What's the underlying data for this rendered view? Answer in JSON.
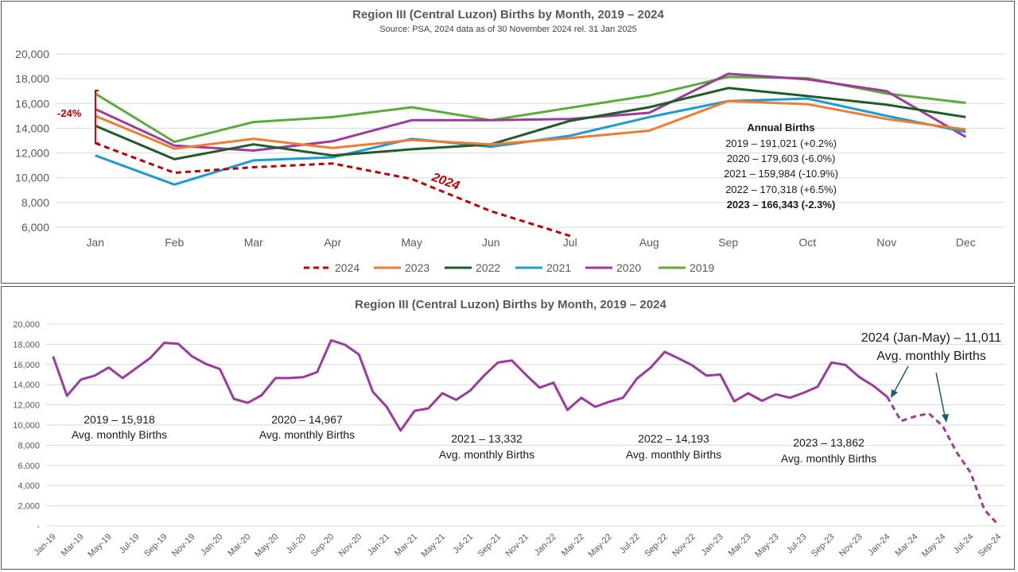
{
  "chart_data": [
    {
      "type": "line",
      "title": "Region III (Central Luzon) Births by Month, 2019 – 2024",
      "subtitle": "Source: PSA, 2024 data as of 30 November 2024 rel. 31 Jan 2025",
      "categories": [
        "Jan",
        "Feb",
        "Mar",
        "Apr",
        "May",
        "Jun",
        "Jul",
        "Aug",
        "Sep",
        "Oct",
        "Nov",
        "Dec"
      ],
      "ylim": [
        6000,
        20000
      ],
      "yticks": [
        "6,000",
        "8,000",
        "10,000",
        "12,000",
        "14,000",
        "16,000",
        "18,000",
        "20,000"
      ],
      "grid": true,
      "legend_position": "bottom",
      "series": [
        {
          "name": "2024",
          "color": "#c00000",
          "dashed": true,
          "values": [
            12800,
            10400,
            10850,
            11150,
            9900,
            7300,
            5300,
            null,
            null,
            null,
            null,
            null
          ]
        },
        {
          "name": "2023",
          "color": "#ed7d31",
          "values": [
            15000,
            12350,
            13150,
            12400,
            13050,
            12700,
            13200,
            13800,
            16200,
            15950,
            14750,
            13900
          ]
        },
        {
          "name": "2022",
          "color": "#1e5c2a",
          "values": [
            14200,
            11500,
            12700,
            11800,
            12300,
            12700,
            14600,
            15700,
            17250,
            16600,
            15900,
            14900
          ]
        },
        {
          "name": "2021",
          "color": "#1f9bd1",
          "values": [
            11800,
            9450,
            11400,
            11650,
            13150,
            12500,
            13400,
            14900,
            16200,
            16400,
            15000,
            13700
          ]
        },
        {
          "name": "2020",
          "color": "#9e3a9e",
          "values": [
            15550,
            12600,
            12200,
            12950,
            14650,
            14650,
            14750,
            15250,
            18400,
            17950,
            17000,
            13300
          ]
        },
        {
          "name": "2019",
          "color": "#5aab3a",
          "values": [
            16800,
            12900,
            14500,
            14900,
            15700,
            14650,
            15650,
            16650,
            18150,
            18050,
            16800,
            16050
          ]
        }
      ],
      "annotations": {
        "drop_label": "-24%",
        "series_label": "2024",
        "annual_title": "Annual Births",
        "annual_lines": [
          "2019 – 191,021 (+0.2%)",
          "2020 – 179,603 (-6.0%)",
          "2021 – 159,984 (-10.9%)",
          "2022 – 170,318 (+6.5%)",
          "2023 – 166,343 (-2.3%)"
        ]
      }
    },
    {
      "type": "line",
      "title": "Region III (Central Luzon) Births by Month, 2019 – 2024",
      "ylim": [
        0,
        20000
      ],
      "yticks": [
        "-",
        "2,000",
        "4,000",
        "6,000",
        "8,000",
        "10,000",
        "12,000",
        "14,000",
        "16,000",
        "18,000",
        "20,000"
      ],
      "grid": true,
      "line_color": "#9e3a9e",
      "x_labels": [
        "Jan-19",
        "Mar-19",
        "May-19",
        "Jul-19",
        "Sep-19",
        "Nov-19",
        "Jan-20",
        "Mar-20",
        "May-20",
        "Jul-20",
        "Sep-20",
        "Nov-20",
        "Jan-21",
        "Mar-21",
        "May-21",
        "Jul-21",
        "Sep-21",
        "Nov-21",
        "Jan-22",
        "Mar-22",
        "May-22",
        "Jul-22",
        "Sep-22",
        "Nov-22",
        "Jan-23",
        "Mar-23",
        "May-23",
        "Jul-23",
        "Sep-23",
        "Nov-23",
        "Jan-24",
        "Mar-24",
        "May-24",
        "Jul-24",
        "Sep-24"
      ],
      "solid_values": [
        16800,
        12900,
        14500,
        14900,
        15700,
        14650,
        15650,
        16650,
        18150,
        18050,
        16800,
        16050,
        15550,
        12600,
        12200,
        12950,
        14650,
        14650,
        14750,
        15250,
        18400,
        17950,
        17000,
        13300,
        11800,
        9450,
        11400,
        11650,
        13150,
        12500,
        13400,
        14900,
        16200,
        16400,
        15000,
        13700,
        14200,
        11500,
        12700,
        11800,
        12300,
        12700,
        14600,
        15700,
        17250,
        16600,
        15900,
        14900,
        15000,
        12350,
        13150,
        12400,
        13050,
        12700,
        13200,
        13800,
        16200,
        15950,
        14750,
        13900,
        12800
      ],
      "dashed_values": [
        12800,
        10400,
        10850,
        11150,
        9900,
        7300,
        5300,
        1600,
        100
      ],
      "annotations": [
        {
          "line1": "2019 – 15,918",
          "line2": "Avg. monthly Births"
        },
        {
          "line1": "2020 – 14,967",
          "line2": "Avg. monthly Births"
        },
        {
          "line1": "2021 – 13,332",
          "line2": "Avg. monthly Births"
        },
        {
          "line1": "2022 – 14,193",
          "line2": "Avg. monthly Births"
        },
        {
          "line1": "2023 – 13,862",
          "line2": "Avg. monthly Births"
        },
        {
          "line1": "2024 (Jan-May) – 11,011",
          "line2": "Avg. monthly Births"
        }
      ]
    }
  ]
}
